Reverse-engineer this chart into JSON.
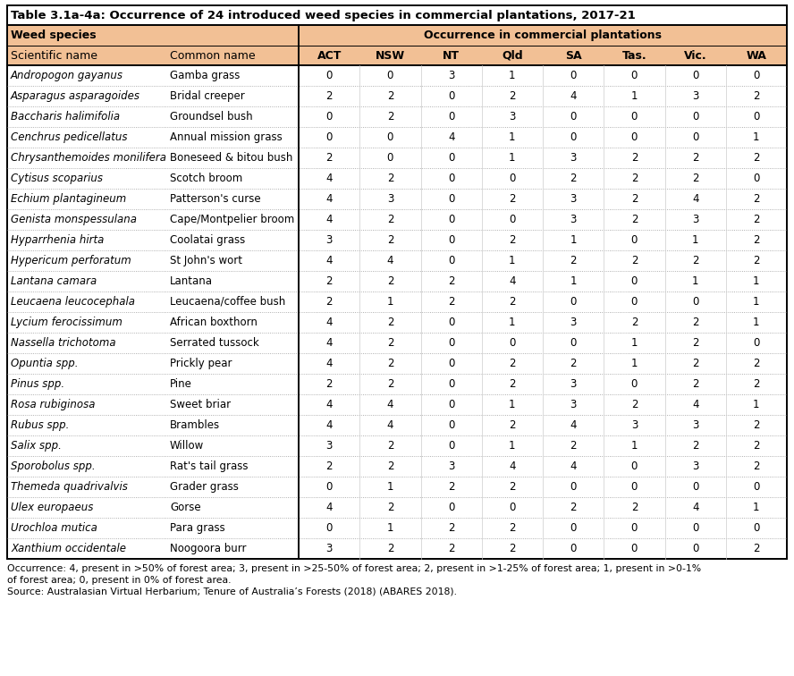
{
  "title": "Table 3.1a-4a: Occurrence of 24 introduced weed species in commercial plantations, 2017-21",
  "header_bg_color": "#F2C095",
  "col_header_occurrence": "Occurrence in commercial plantations",
  "col_header_weed": "Weed species",
  "subheader_sci": "Scientific name",
  "subheader_common": "Common name",
  "state_cols": [
    "ACT",
    "NSW",
    "NT",
    "Qld",
    "SA",
    "Tas.",
    "Vic.",
    "WA"
  ],
  "rows": [
    {
      "sci": "Andropogon gayanus",
      "common": "Gamba grass",
      "vals": [
        0,
        0,
        3,
        1,
        0,
        0,
        0,
        0
      ]
    },
    {
      "sci": "Asparagus asparagoides",
      "common": "Bridal creeper",
      "vals": [
        2,
        2,
        0,
        2,
        4,
        1,
        3,
        2
      ]
    },
    {
      "sci": "Baccharis halimifolia",
      "common": "Groundsel bush",
      "vals": [
        0,
        2,
        0,
        3,
        0,
        0,
        0,
        0
      ]
    },
    {
      "sci": "Cenchrus pedicellatus",
      "common": "Annual mission grass",
      "vals": [
        0,
        0,
        4,
        1,
        0,
        0,
        0,
        1
      ]
    },
    {
      "sci": "Chrysanthemoides monilifera",
      "common": "Boneseed & bitou bush",
      "vals": [
        2,
        0,
        0,
        1,
        3,
        2,
        2,
        2
      ]
    },
    {
      "sci": "Cytisus scoparius",
      "common": "Scotch broom",
      "vals": [
        4,
        2,
        0,
        0,
        2,
        2,
        2,
        0
      ]
    },
    {
      "sci": "Echium plantagineum",
      "common": "Patterson's curse",
      "vals": [
        4,
        3,
        0,
        2,
        3,
        2,
        4,
        2
      ]
    },
    {
      "sci": "Genista monspessulana",
      "common": "Cape/Montpelier broom",
      "vals": [
        4,
        2,
        0,
        0,
        3,
        2,
        3,
        2
      ]
    },
    {
      "sci": "Hyparrhenia hirta",
      "common": "Coolatai grass",
      "vals": [
        3,
        2,
        0,
        2,
        1,
        0,
        1,
        2
      ]
    },
    {
      "sci": "Hypericum perforatum",
      "common": "St John's wort",
      "vals": [
        4,
        4,
        0,
        1,
        2,
        2,
        2,
        2
      ]
    },
    {
      "sci": "Lantana camara",
      "common": "Lantana",
      "vals": [
        2,
        2,
        2,
        4,
        1,
        0,
        1,
        1
      ]
    },
    {
      "sci": "Leucaena leucocephala",
      "common": "Leucaena/coffee bush",
      "vals": [
        2,
        1,
        2,
        2,
        0,
        0,
        0,
        1
      ]
    },
    {
      "sci": "Lycium ferocissimum",
      "common": "African boxthorn",
      "vals": [
        4,
        2,
        0,
        1,
        3,
        2,
        2,
        1
      ]
    },
    {
      "sci": "Nassella trichotoma",
      "common": "Serrated tussock",
      "vals": [
        4,
        2,
        0,
        0,
        0,
        1,
        2,
        0
      ]
    },
    {
      "sci": "Opuntia spp.",
      "common": "Prickly pear",
      "vals": [
        4,
        2,
        0,
        2,
        2,
        1,
        2,
        2
      ]
    },
    {
      "sci": "Pinus spp.",
      "common": "Pine",
      "vals": [
        2,
        2,
        0,
        2,
        3,
        0,
        2,
        2
      ]
    },
    {
      "sci": "Rosa rubiginosa",
      "common": "Sweet briar",
      "vals": [
        4,
        4,
        0,
        1,
        3,
        2,
        4,
        1
      ]
    },
    {
      "sci": "Rubus spp.",
      "common": "Brambles",
      "vals": [
        4,
        4,
        0,
        2,
        4,
        3,
        3,
        2
      ]
    },
    {
      "sci": "Salix spp.",
      "common": "Willow",
      "vals": [
        3,
        2,
        0,
        1,
        2,
        1,
        2,
        2
      ]
    },
    {
      "sci": "Sporobolus spp.",
      "common": "Rat's tail grass",
      "vals": [
        2,
        2,
        3,
        4,
        4,
        0,
        3,
        2
      ]
    },
    {
      "sci": "Themeda quadrivalvis",
      "common": "Grader grass",
      "vals": [
        0,
        1,
        2,
        2,
        0,
        0,
        0,
        0
      ]
    },
    {
      "sci": "Ulex europaeus",
      "common": "Gorse",
      "vals": [
        4,
        2,
        0,
        0,
        2,
        2,
        4,
        1
      ]
    },
    {
      "sci": "Urochloa mutica",
      "common": "Para grass",
      "vals": [
        0,
        1,
        2,
        2,
        0,
        0,
        0,
        0
      ]
    },
    {
      "sci": "Xanthium occidentale",
      "common": "Noogoora burr",
      "vals": [
        3,
        2,
        2,
        2,
        0,
        0,
        0,
        2
      ]
    }
  ],
  "footnote_line1": "Occurrence: 4, present in >50% of forest area; 3, present in >25-50% of forest area; 2, present in >1-25% of forest area; 1, present in >0-1%",
  "footnote_line2": "of forest area; 0, present in 0% of forest area.",
  "footnote_line3": "Source: Australasian Virtual Herbarium; Tenure of Australia’s Forests (2018) (ABARES 2018).",
  "bg_white": "#FFFFFF",
  "border_color": "#000000",
  "divider_color": "#999999",
  "title_fontsize": 9.5,
  "header_fontsize": 9.0,
  "data_fontsize": 8.5,
  "footnote_fontsize": 7.8
}
